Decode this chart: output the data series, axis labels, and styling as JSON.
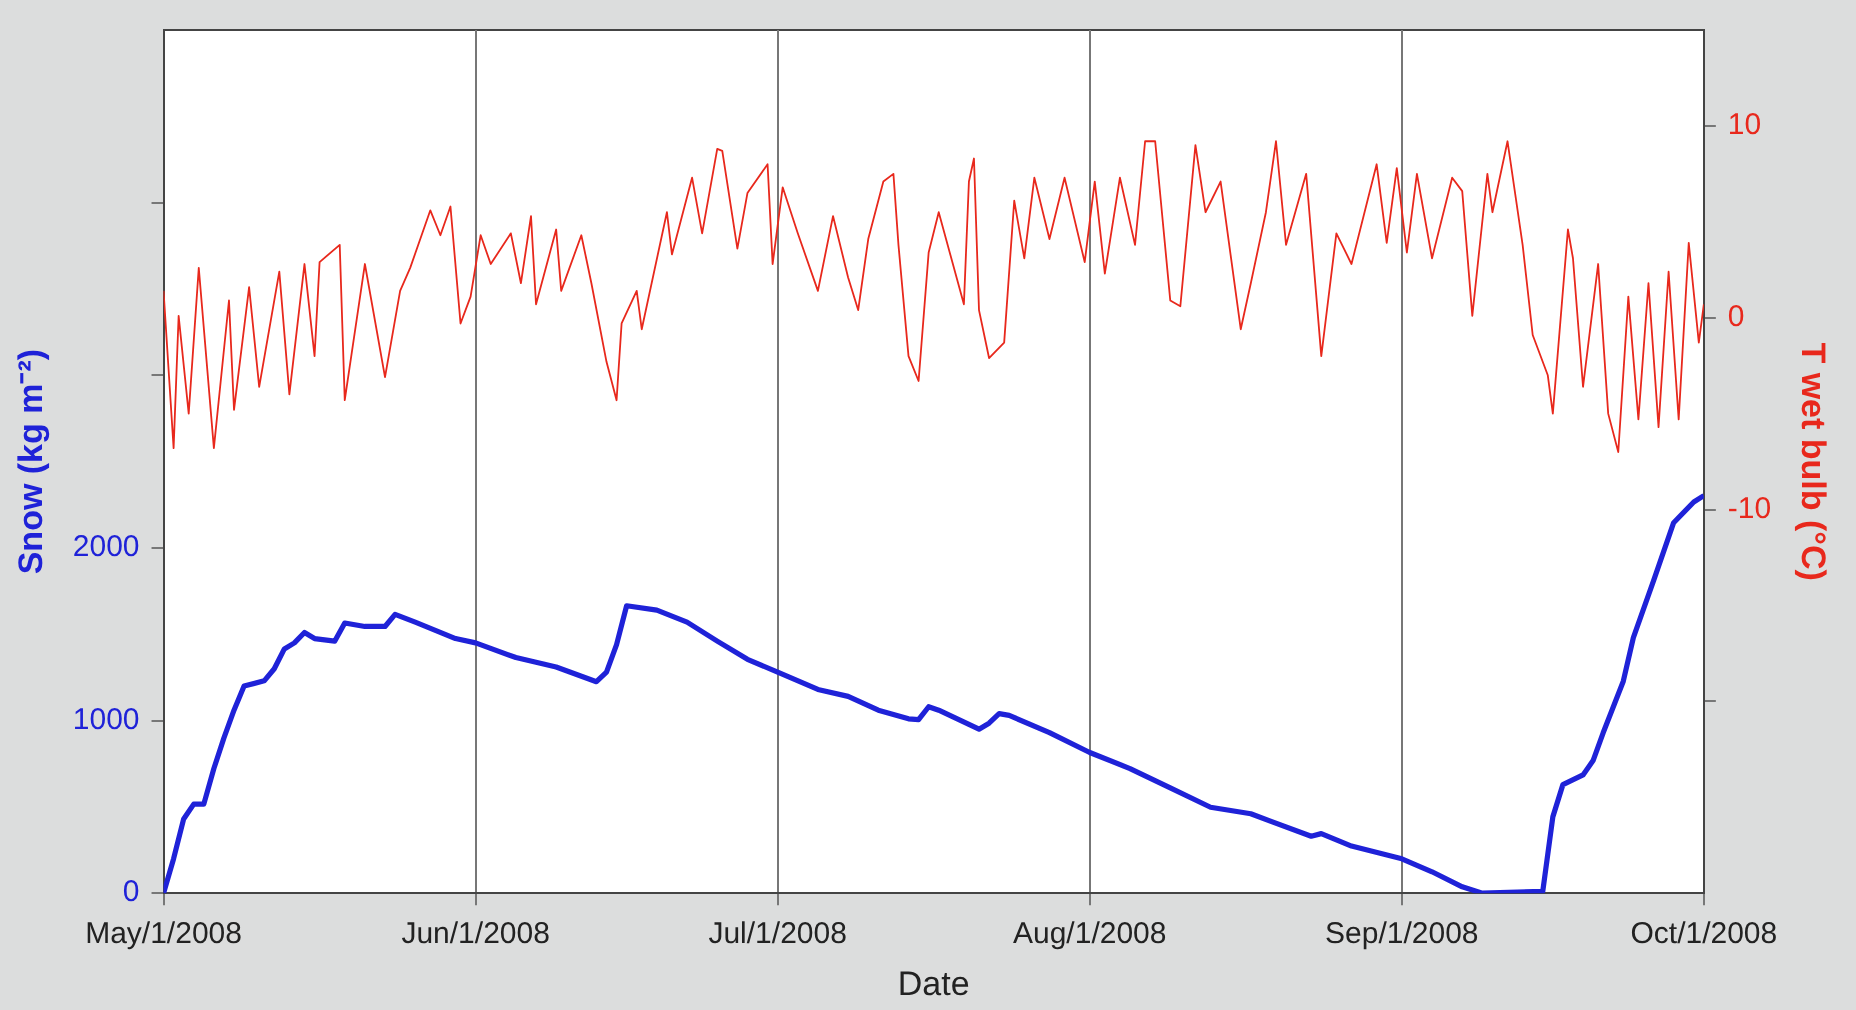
{
  "chart_data": {
    "type": "line",
    "xlabel": "Date",
    "ylabel": "Snow (kg m⁻²)",
    "y2label": "T wet bulb (°C)",
    "xlim": [
      "2008-05-01",
      "2008-10-01"
    ],
    "xticks": [
      {
        "value": "2008-05-01",
        "label": "May/1/2008"
      },
      {
        "value": "2008-06-01",
        "label": "Jun/1/2008"
      },
      {
        "value": "2008-07-01",
        "label": "Jul/1/2008"
      },
      {
        "value": "2008-08-01",
        "label": "Aug/1/2008"
      },
      {
        "value": "2008-09-01",
        "label": "Sep/1/2008"
      },
      {
        "value": "2008-10-01",
        "label": "Oct/1/2008"
      }
    ],
    "ylim": [
      0,
      5000
    ],
    "yticks": [
      0,
      1000,
      2000,
      {
        "value": 3000,
        "label": null
      },
      {
        "value": 4000,
        "label": null
      }
    ],
    "y2lim": [
      -30,
      15
    ],
    "y2ticks": [
      {
        "value": -20,
        "label": null
      },
      -10,
      0,
      10
    ],
    "grid": "x",
    "legend": false,
    "marker": "none",
    "line_style": "solid",
    "series": [
      {
        "color": "#1f22d8",
        "axis": "y",
        "x": [
          "2008-05-01",
          "2008-05-02",
          "2008-05-03",
          "2008-05-04",
          "2008-05-05",
          "2008-05-06",
          "2008-05-07",
          "2008-05-08",
          "2008-05-09",
          "2008-05-11",
          "2008-05-12",
          "2008-05-13",
          "2008-05-14",
          "2008-05-15",
          "2008-05-16",
          "2008-05-18",
          "2008-05-19",
          "2008-05-21",
          "2008-05-23",
          "2008-05-24",
          "2008-05-26",
          "2008-05-30",
          "2008-06-01",
          "2008-06-05",
          "2008-06-09",
          "2008-06-13",
          "2008-06-14",
          "2008-06-15",
          "2008-06-16",
          "2008-06-19",
          "2008-06-22",
          "2008-06-25",
          "2008-06-28",
          "2008-07-01",
          "2008-07-05",
          "2008-07-08",
          "2008-07-11",
          "2008-07-14",
          "2008-07-15",
          "2008-07-16",
          "2008-07-17",
          "2008-07-21",
          "2008-07-22",
          "2008-07-23",
          "2008-07-24",
          "2008-07-28",
          "2008-08-01",
          "2008-08-05",
          "2008-08-09",
          "2008-08-13",
          "2008-08-17",
          "2008-08-23",
          "2008-08-24",
          "2008-08-27",
          "2008-09-01",
          "2008-09-04",
          "2008-09-07",
          "2008-09-09",
          "2008-09-15",
          "2008-09-16",
          "2008-09-17",
          "2008-09-19",
          "2008-09-20",
          "2008-09-21",
          "2008-09-23",
          "2008-09-24",
          "2008-09-26",
          "2008-09-28",
          "2008-09-30",
          "2008-10-01"
        ],
        "values": [
          0,
          200,
          430,
          516,
          516,
          722,
          900,
          1060,
          1200,
          1230,
          1300,
          1415,
          1450,
          1510,
          1475,
          1460,
          1565,
          1545,
          1545,
          1615,
          1570,
          1475,
          1450,
          1365,
          1310,
          1225,
          1280,
          1440,
          1665,
          1640,
          1570,
          1460,
          1355,
          1280,
          1180,
          1140,
          1060,
          1010,
          1005,
          1080,
          1060,
          950,
          985,
          1040,
          1030,
          930,
          815,
          722,
          610,
          498,
          460,
          330,
          345,
          273,
          199,
          124,
          37,
          0,
          11,
          442,
          629,
          685,
          768,
          929,
          1228,
          1480,
          1809,
          2146,
          2266,
          2303
        ]
      },
      {
        "color": "#e8281c",
        "axis": "y2",
        "x": [
          "2008-05-01",
          "2008-05-02",
          "2008-05-02T12:00",
          "2008-05-03T12:00",
          "2008-05-04T12:00",
          "2008-05-06",
          "2008-05-07T12:00",
          "2008-05-08",
          "2008-05-09T12:00",
          "2008-05-10T12:00",
          "2008-05-12T12:00",
          "2008-05-13T12:00",
          "2008-05-15",
          "2008-05-16",
          "2008-05-16T12:00",
          "2008-05-18T12:00",
          "2008-05-19",
          "2008-05-21",
          "2008-05-23",
          "2008-05-24T12:00",
          "2008-05-25T12:00",
          "2008-05-27T12:00",
          "2008-05-28T12:00",
          "2008-05-29T12:00",
          "2008-05-30T12:00",
          "2008-05-31T12:00",
          "2008-06-01T12:00",
          "2008-06-02T12:00",
          "2008-06-04T12:00",
          "2008-06-05T12:00",
          "2008-06-06T12:00",
          "2008-06-07",
          "2008-06-09",
          "2008-06-09T12:00",
          "2008-06-11T12:00",
          "2008-06-12T12:00",
          "2008-06-14",
          "2008-06-15",
          "2008-06-15T12:00",
          "2008-06-17",
          "2008-06-17T12:00",
          "2008-06-20",
          "2008-06-20T12:00",
          "2008-06-22T12:00",
          "2008-06-23T12:00",
          "2008-06-25",
          "2008-06-25T12:00",
          "2008-06-27",
          "2008-06-28",
          "2008-06-30",
          "2008-06-30T12:00",
          "2008-07-01T12:00",
          "2008-07-03",
          "2008-07-05",
          "2008-07-06T12:00",
          "2008-07-08",
          "2008-07-09",
          "2008-07-10",
          "2008-07-11T12:00",
          "2008-07-12T12:00",
          "2008-07-13",
          "2008-07-14",
          "2008-07-15",
          "2008-07-16",
          "2008-07-17",
          "2008-07-19T12:00",
          "2008-07-20",
          "2008-07-20T12:00",
          "2008-07-21",
          "2008-07-22",
          "2008-07-23T12:00",
          "2008-07-24T12:00",
          "2008-07-25T12:00",
          "2008-07-26T12:00",
          "2008-07-28",
          "2008-07-29T12:00",
          "2008-07-31T12:00",
          "2008-08-01T12:00",
          "2008-08-02T12:00",
          "2008-08-04",
          "2008-08-05T12:00",
          "2008-08-06T12:00",
          "2008-08-07T12:00",
          "2008-08-09",
          "2008-08-10",
          "2008-08-11T12:00",
          "2008-08-12T12:00",
          "2008-08-14",
          "2008-08-16",
          "2008-08-17",
          "2008-08-18T12:00",
          "2008-08-19T12:00",
          "2008-08-20T12:00",
          "2008-08-22T12:00",
          "2008-08-24",
          "2008-08-25T12:00",
          "2008-08-27",
          "2008-08-29T12:00",
          "2008-08-30T12:00",
          "2008-08-31T12:00",
          "2008-09-01T12:00",
          "2008-09-02T12:00",
          "2008-09-04",
          "2008-09-06",
          "2008-09-07",
          "2008-09-08",
          "2008-09-09T12:00",
          "2008-09-10",
          "2008-09-11T12:00",
          "2008-09-13",
          "2008-09-14",
          "2008-09-15T12:00",
          "2008-09-16",
          "2008-09-17T12:00",
          "2008-09-18",
          "2008-09-19",
          "2008-09-20T12:00",
          "2008-09-21T12:00",
          "2008-09-22T12:00",
          "2008-09-23T12:00",
          "2008-09-24T12:00",
          "2008-09-25T12:00",
          "2008-09-26T12:00",
          "2008-09-27T12:00",
          "2008-09-28T12:00",
          "2008-09-29T12:00",
          "2008-09-30T12:00",
          "2008-10-01"
        ],
        "values": [
          1.4,
          -6.8,
          0.1,
          -5,
          2.6,
          -6.8,
          0.9,
          -4.8,
          1.6,
          -3.6,
          2.4,
          -4,
          2.8,
          -2,
          2.9,
          3.8,
          -4.3,
          2.8,
          -3.1,
          1.4,
          2.6,
          5.6,
          4.3,
          5.8,
          -0.3,
          1.1,
          4.3,
          2.8,
          4.4,
          1.8,
          5.3,
          0.7,
          4.6,
          1.4,
          4.3,
          1.8,
          -2.3,
          -4.3,
          -0.3,
          1.4,
          -0.6,
          5.5,
          3.3,
          7.3,
          4.4,
          8.8,
          8.7,
          3.6,
          6.5,
          8,
          2.8,
          6.8,
          4.4,
          1.4,
          5.3,
          2.1,
          0.4,
          4.1,
          7.1,
          7.5,
          3.8,
          -2,
          -3.3,
          3.4,
          5.5,
          0.7,
          7.1,
          8.3,
          0.4,
          -2.1,
          -1.3,
          6.1,
          3.1,
          7.3,
          4.1,
          7.3,
          2.9,
          7.1,
          2.3,
          7.3,
          3.8,
          9.2,
          9.2,
          0.9,
          0.6,
          9,
          5.5,
          7.1,
          -0.6,
          1.8,
          5.5,
          9.2,
          3.8,
          7.5,
          -2,
          4.4,
          2.8,
          8,
          3.9,
          7.8,
          3.4,
          7.5,
          3.1,
          7.3,
          6.6,
          0.1,
          7.5,
          5.5,
          9.2,
          3.8,
          -0.9,
          -3,
          -5,
          4.6,
          3.1,
          -3.6,
          2.8,
          -5,
          -7,
          1.1,
          -5.3,
          1.8,
          -5.7,
          2.4,
          -5.3,
          3.9,
          -1.3,
          0.7
        ]
      }
    ]
  }
}
